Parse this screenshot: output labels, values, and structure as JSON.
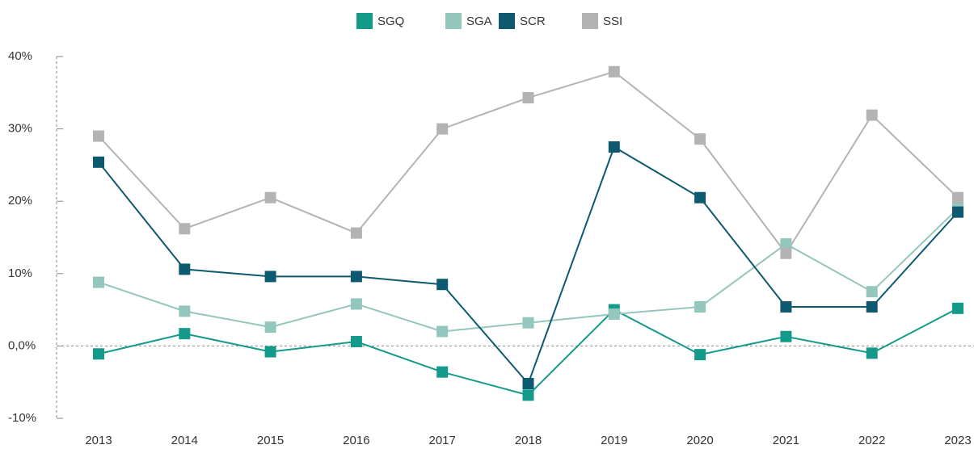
{
  "chart_data": {
    "type": "line",
    "categories": [
      "2013",
      "2014",
      "2015",
      "2016",
      "2017",
      "2018",
      "2019",
      "2020",
      "2021",
      "2022",
      "2023"
    ],
    "series": [
      {
        "name": "SGQ",
        "color": "#149a8a",
        "values": [
          -1.1,
          1.7,
          -0.8,
          0.6,
          -3.6,
          -6.8,
          5.0,
          -1.2,
          1.3,
          -1.0,
          5.2
        ]
      },
      {
        "name": "SGA",
        "color": "#93c6bc",
        "values": [
          8.8,
          4.8,
          2.6,
          5.8,
          2.0,
          3.2,
          4.4,
          5.4,
          14.1,
          7.5,
          19.0
        ]
      },
      {
        "name": "SCR",
        "color": "#0d5a70",
        "values": [
          25.4,
          10.6,
          9.6,
          9.6,
          8.5,
          -5.2,
          27.5,
          20.5,
          5.4,
          5.4,
          18.5
        ]
      },
      {
        "name": "SSI",
        "color": "#b3b3b3",
        "values": [
          29.0,
          16.2,
          20.5,
          15.6,
          30.0,
          34.3,
          37.9,
          28.6,
          12.8,
          31.9,
          20.5
        ]
      }
    ],
    "ylim": [
      -10,
      40
    ],
    "yticks": [
      {
        "value": -10,
        "label": "-10%"
      },
      {
        "value": 0,
        "label": "0,0%"
      },
      {
        "value": 10,
        "label": "10%"
      },
      {
        "value": 20,
        "label": "20%"
      },
      {
        "value": 30,
        "label": "30%"
      },
      {
        "value": 40,
        "label": "40%"
      }
    ],
    "legend": "top"
  }
}
